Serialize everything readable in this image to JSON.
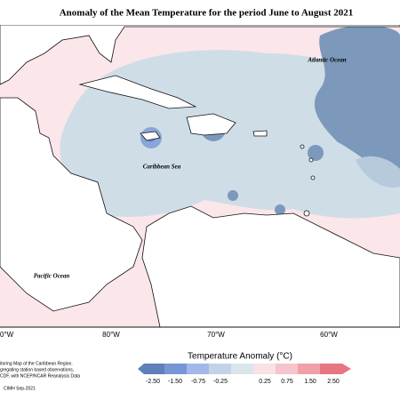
{
  "title": "Anomaly of the Mean Temperature for the period June to August 2021",
  "ocean_labels": {
    "atlantic": "Atlantic Ocean",
    "caribbean": "Caribbean Sea",
    "pacific": "Pacific Ocean"
  },
  "longitude_labels": [
    "0°W",
    "80°W",
    "70°W",
    "60°W"
  ],
  "legend": {
    "title": "Temperature Anomaly (°C)",
    "tick_labels": [
      "-2.50",
      "-1.50",
      "-0.75",
      "-0.25",
      "0.25",
      "0.75",
      "1.50",
      "2.50"
    ]
  },
  "source": [
    "itoring Map of the Caribbean Region.",
    "gregating station based observations,",
    "CDF, with NCEP/NCAR Reanalysis Data"
  ],
  "footer": "CIMH Sep-2021"
}
